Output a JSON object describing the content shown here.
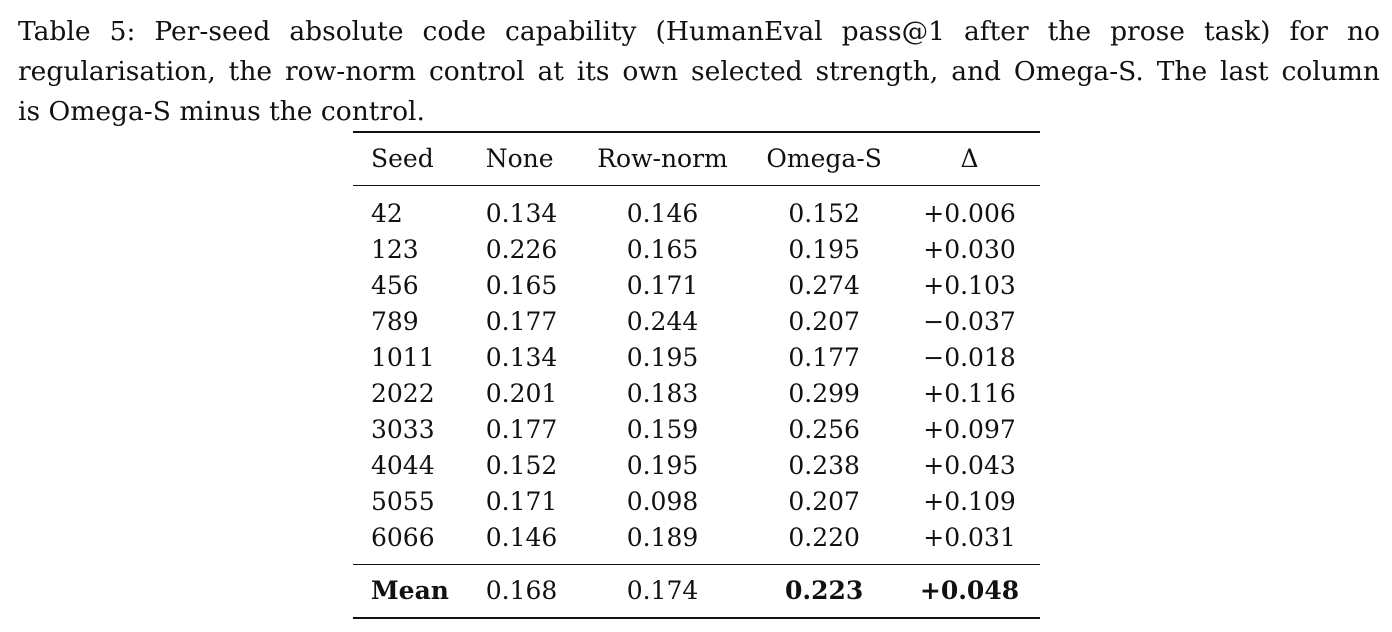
{
  "caption": {
    "line1": "Table 5: Per-seed absolute code capability (HumanEval pass@1 after the prose task) for no",
    "line2": "regularisation, the row-norm control at its own selected strength, and Omega-S. The last column",
    "line3": "is Omega-S minus the control."
  },
  "table": {
    "headers": {
      "seed": "Seed",
      "none": "None",
      "row_norm": "Row-norm",
      "omega_s": "Omega-S",
      "delta": "Δ"
    },
    "rows": [
      {
        "seed": "42",
        "none": "0.134",
        "row_norm": "0.146",
        "omega_s": "0.152",
        "delta": "+0.006"
      },
      {
        "seed": "123",
        "none": "0.226",
        "row_norm": "0.165",
        "omega_s": "0.195",
        "delta": "+0.030"
      },
      {
        "seed": "456",
        "none": "0.165",
        "row_norm": "0.171",
        "omega_s": "0.274",
        "delta": "+0.103"
      },
      {
        "seed": "789",
        "none": "0.177",
        "row_norm": "0.244",
        "omega_s": "0.207",
        "delta": "−0.037"
      },
      {
        "seed": "1011",
        "none": "0.134",
        "row_norm": "0.195",
        "omega_s": "0.177",
        "delta": "−0.018"
      },
      {
        "seed": "2022",
        "none": "0.201",
        "row_norm": "0.183",
        "omega_s": "0.299",
        "delta": "+0.116"
      },
      {
        "seed": "3033",
        "none": "0.177",
        "row_norm": "0.159",
        "omega_s": "0.256",
        "delta": "+0.097"
      },
      {
        "seed": "4044",
        "none": "0.152",
        "row_norm": "0.195",
        "omega_s": "0.238",
        "delta": "+0.043"
      },
      {
        "seed": "5055",
        "none": "0.171",
        "row_norm": "0.098",
        "omega_s": "0.207",
        "delta": "+0.109"
      },
      {
        "seed": "6066",
        "none": "0.146",
        "row_norm": "0.189",
        "omega_s": "0.220",
        "delta": "+0.031"
      }
    ],
    "mean": {
      "label": "Mean",
      "none": "0.168",
      "row_norm": "0.174",
      "omega_s": "0.223",
      "delta": "+0.048"
    }
  }
}
